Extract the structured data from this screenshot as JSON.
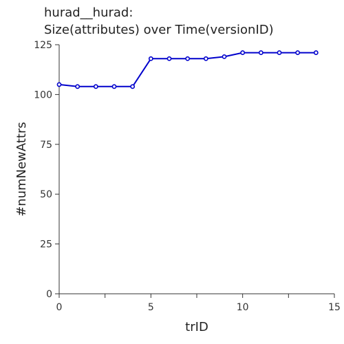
{
  "chart_data": {
    "type": "line",
    "title_lines": [
      "hurad__hurad:",
      "Size(attributes) over Time(versionID)"
    ],
    "xlabel": "trID",
    "ylabel": "#numNewAttrs",
    "xlim": [
      0,
      15
    ],
    "ylim": [
      0,
      125
    ],
    "x_ticks": [
      0,
      5,
      10,
      15
    ],
    "x_minor_ticks": [
      2.5,
      7.5,
      12.5
    ],
    "y_ticks": [
      0,
      25,
      50,
      75,
      100,
      125
    ],
    "grid": false,
    "legend": "none",
    "series": [
      {
        "color": "#0000cc",
        "x": [
          0,
          1,
          2,
          3,
          4,
          5,
          6,
          7,
          8,
          9,
          10,
          11,
          12,
          13,
          14
        ],
        "y": [
          105,
          104,
          104,
          104,
          104,
          118,
          118,
          118,
          118,
          119,
          121,
          121,
          121,
          121,
          121
        ]
      }
    ]
  }
}
